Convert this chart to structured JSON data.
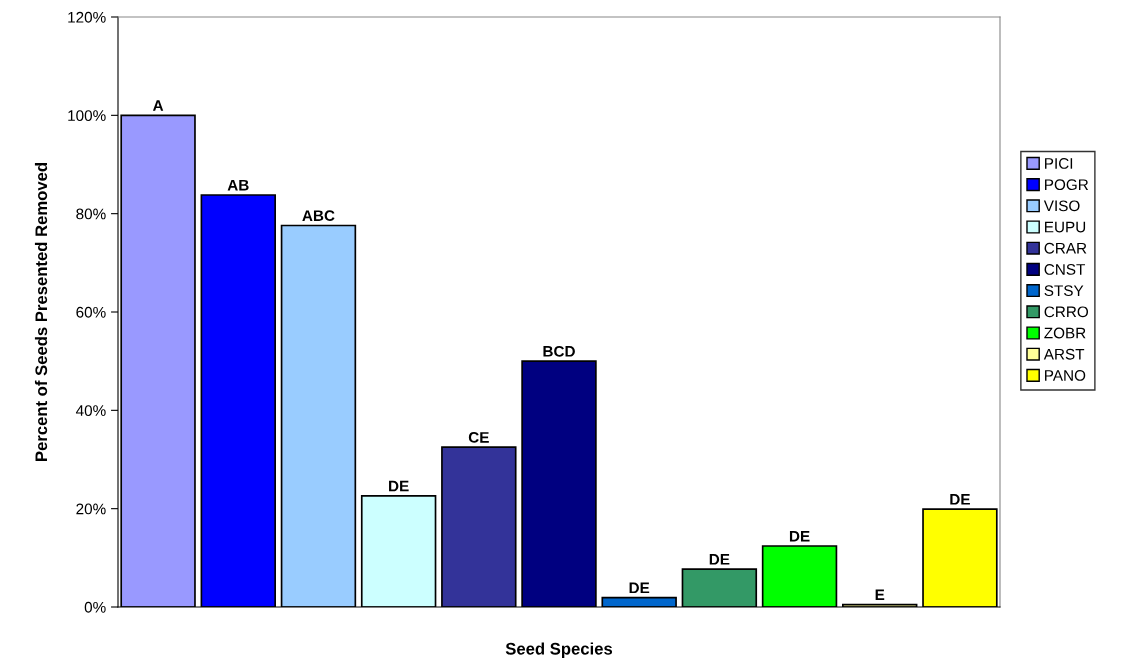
{
  "chart_data": {
    "type": "bar",
    "xlabel": "Seed Species",
    "ylabel": "Percent of Seeds Presented Removed",
    "categories": [
      null
    ],
    "series": [
      {
        "name": "PICI",
        "color": "#9999ff",
        "values": [
          100
        ],
        "value_labels": [
          "A"
        ]
      },
      {
        "name": "POGR",
        "color": "#0000ff",
        "values": [
          83.8
        ],
        "value_labels": [
          "AB"
        ]
      },
      {
        "name": "VISO",
        "color": "#99ccff",
        "values": [
          77.6
        ],
        "value_labels": [
          "ABC"
        ]
      },
      {
        "name": "EUPU",
        "color": "#ccffff",
        "values": [
          22.6
        ],
        "value_labels": [
          "DE"
        ]
      },
      {
        "name": "CRAR",
        "color": "#333399",
        "values": [
          32.5
        ],
        "value_labels": [
          "CE"
        ]
      },
      {
        "name": "CNST",
        "color": "#000080",
        "values": [
          50.0
        ],
        "value_labels": [
          "BCD"
        ]
      },
      {
        "name": "STSY",
        "color": "#0066cc",
        "values": [
          1.9
        ],
        "value_labels": [
          "DE"
        ]
      },
      {
        "name": "CRRO",
        "color": "#339966",
        "values": [
          7.7
        ],
        "value_labels": [
          "DE"
        ]
      },
      {
        "name": "ZOBR",
        "color": "#00ff00",
        "values": [
          12.4
        ],
        "value_labels": [
          "DE"
        ]
      },
      {
        "name": "ARST",
        "color": "#ffff99",
        "values": [
          0.5
        ],
        "value_labels": [
          "E"
        ]
      },
      {
        "name": "PANO",
        "color": "#ffff00",
        "values": [
          19.9
        ],
        "value_labels": [
          "DE"
        ]
      }
    ],
    "ylim": [
      0,
      120
    ],
    "yticks": [
      {
        "value": 0,
        "label": "0%"
      },
      {
        "value": 20,
        "label": "20%"
      },
      {
        "value": 40,
        "label": "40%"
      },
      {
        "value": 60,
        "label": "60%"
      },
      {
        "value": 80,
        "label": "80%"
      },
      {
        "value": 100,
        "label": "100%"
      },
      {
        "value": 120,
        "label": "120%"
      }
    ],
    "legend": "right",
    "grid": false
  }
}
